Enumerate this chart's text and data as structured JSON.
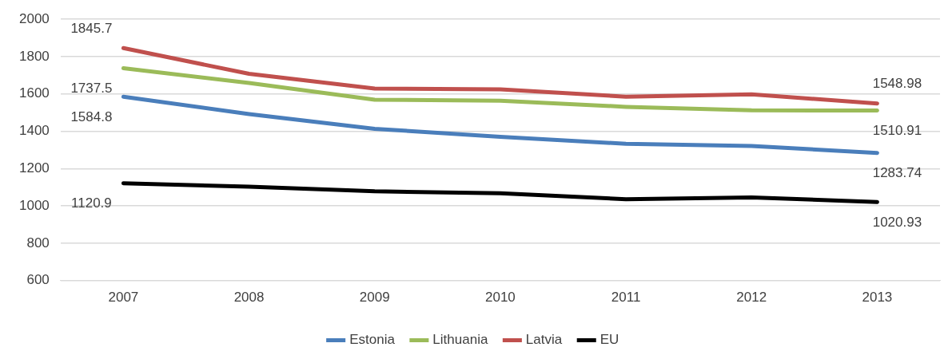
{
  "chart_data": {
    "type": "line",
    "categories": [
      "2007",
      "2008",
      "2009",
      "2010",
      "2011",
      "2012",
      "2013"
    ],
    "series": [
      {
        "name": "Estonia",
        "color": "#4a7ebb",
        "values": [
          1584.8,
          1492,
          1413,
          1370,
          1333,
          1321,
          1283.74
        ],
        "value_labels": [
          "1584.8",
          null,
          null,
          null,
          null,
          null,
          "1283.74"
        ]
      },
      {
        "name": "Lithuania",
        "color": "#9bbb59",
        "values": [
          1737.5,
          1659,
          1569,
          1564,
          1531,
          1512,
          1510.91
        ],
        "value_labels": [
          "1737.5",
          null,
          null,
          null,
          null,
          null,
          "1510.91"
        ]
      },
      {
        "name": "Latvia",
        "color": "#c0504d",
        "values": [
          1845.7,
          1708,
          1629,
          1625,
          1585,
          1598,
          1548.98
        ],
        "value_labels": [
          "1845.7",
          null,
          null,
          null,
          null,
          null,
          "1548.98"
        ]
      },
      {
        "name": "EU",
        "color": "#000000",
        "values": [
          1120.9,
          1103,
          1078,
          1068,
          1036,
          1045,
          1020.93
        ],
        "value_labels": [
          "1120.9",
          null,
          null,
          null,
          null,
          null,
          "1020.93"
        ]
      }
    ],
    "ylim": [
      600,
      2000
    ],
    "yticks": [
      600,
      800,
      1000,
      1200,
      1400,
      1600,
      1800,
      2000
    ],
    "grid": "y",
    "legend": "bottom",
    "marker": "none",
    "line_style": "solid"
  }
}
